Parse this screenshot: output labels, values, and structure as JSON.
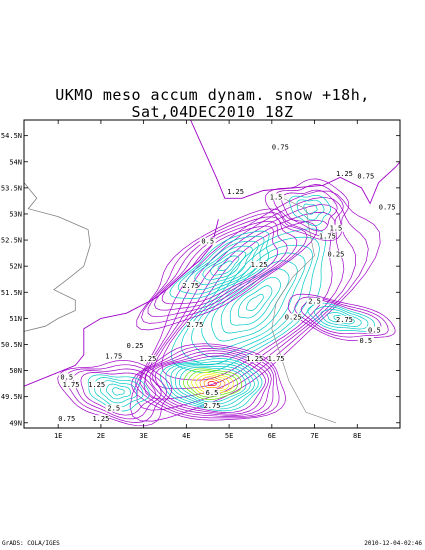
{
  "title": {
    "line1": "UKMO meso accum dynam. snow +18h,",
    "line2": "Sat,04DEC2010 18Z"
  },
  "axes": {
    "lat_ticks": [
      "54.5N",
      "54N",
      "53.5N",
      "53N",
      "52.5N",
      "52N",
      "51.5N",
      "51N",
      "50.5N",
      "50N",
      "49.5N",
      "49N"
    ],
    "lon_ticks": [
      "1E",
      "2E",
      "3E",
      "4E",
      "5E",
      "6E",
      "7E",
      "8E"
    ],
    "lat_range": [
      48.9,
      54.8
    ],
    "lon_range": [
      0.2,
      9.0
    ]
  },
  "contour_labels": [
    {
      "text": "0.75",
      "lat": 54.25,
      "lon": 6.2
    },
    {
      "text": "1.25",
      "lat": 53.75,
      "lon": 7.7
    },
    {
      "text": "0.75",
      "lat": 53.7,
      "lon": 8.2
    },
    {
      "text": "1.25",
      "lat": 53.4,
      "lon": 5.15
    },
    {
      "text": "1.5",
      "lat": 53.3,
      "lon": 6.1
    },
    {
      "text": "0.75",
      "lat": 53.1,
      "lon": 8.7
    },
    {
      "text": "1.5",
      "lat": 52.7,
      "lon": 7.5
    },
    {
      "text": "1.75",
      "lat": 52.55,
      "lon": 7.3
    },
    {
      "text": "0.5",
      "lat": 52.45,
      "lon": 4.5
    },
    {
      "text": "0.25",
      "lat": 52.2,
      "lon": 7.5
    },
    {
      "text": "1.25",
      "lat": 52.0,
      "lon": 5.7
    },
    {
      "text": "2.75",
      "lat": 51.6,
      "lon": 4.1
    },
    {
      "text": "2.5",
      "lat": 51.3,
      "lon": 7.0
    },
    {
      "text": "0.25",
      "lat": 51.0,
      "lon": 6.5
    },
    {
      "text": "2.75",
      "lat": 50.95,
      "lon": 7.7
    },
    {
      "text": "0.5",
      "lat": 50.75,
      "lon": 8.4
    },
    {
      "text": "0.5",
      "lat": 50.55,
      "lon": 8.2
    },
    {
      "text": "2.75",
      "lat": 50.85,
      "lon": 4.2
    },
    {
      "text": "0.25",
      "lat": 50.45,
      "lon": 2.8
    },
    {
      "text": "1.25",
      "lat": 50.2,
      "lon": 3.1
    },
    {
      "text": "1.75",
      "lat": 50.25,
      "lon": 2.3
    },
    {
      "text": "1.25",
      "lat": 50.2,
      "lon": 5.6
    },
    {
      "text": "1.75",
      "lat": 50.2,
      "lon": 6.1
    },
    {
      "text": "0.5",
      "lat": 49.85,
      "lon": 1.2
    },
    {
      "text": "1.75",
      "lat": 49.7,
      "lon": 1.3
    },
    {
      "text": "1.25",
      "lat": 49.7,
      "lon": 1.9
    },
    {
      "text": "6.5",
      "lat": 49.55,
      "lon": 4.6
    },
    {
      "text": "2.75",
      "lat": 49.3,
      "lon": 4.6
    },
    {
      "text": "2.5",
      "lat": 49.25,
      "lon": 2.3
    },
    {
      "text": "1.25",
      "lat": 49.05,
      "lon": 2.0
    },
    {
      "text": "0.75",
      "lat": 49.05,
      "lon": 1.2
    }
  ],
  "colors": {
    "contour_low": "#a000c8",
    "contour_mid": "#00c8c8",
    "contour_core_green": "#64e600",
    "contour_core_yellow": "#f0f000",
    "contour_core_orange": "#ff9600",
    "contour_core_red": "#ff0000",
    "coastline": "#a000c8",
    "land_features": "#808080"
  },
  "footer": {
    "left": "GrADS: COLA/IGES",
    "right": "2010-12-04-02:46"
  }
}
